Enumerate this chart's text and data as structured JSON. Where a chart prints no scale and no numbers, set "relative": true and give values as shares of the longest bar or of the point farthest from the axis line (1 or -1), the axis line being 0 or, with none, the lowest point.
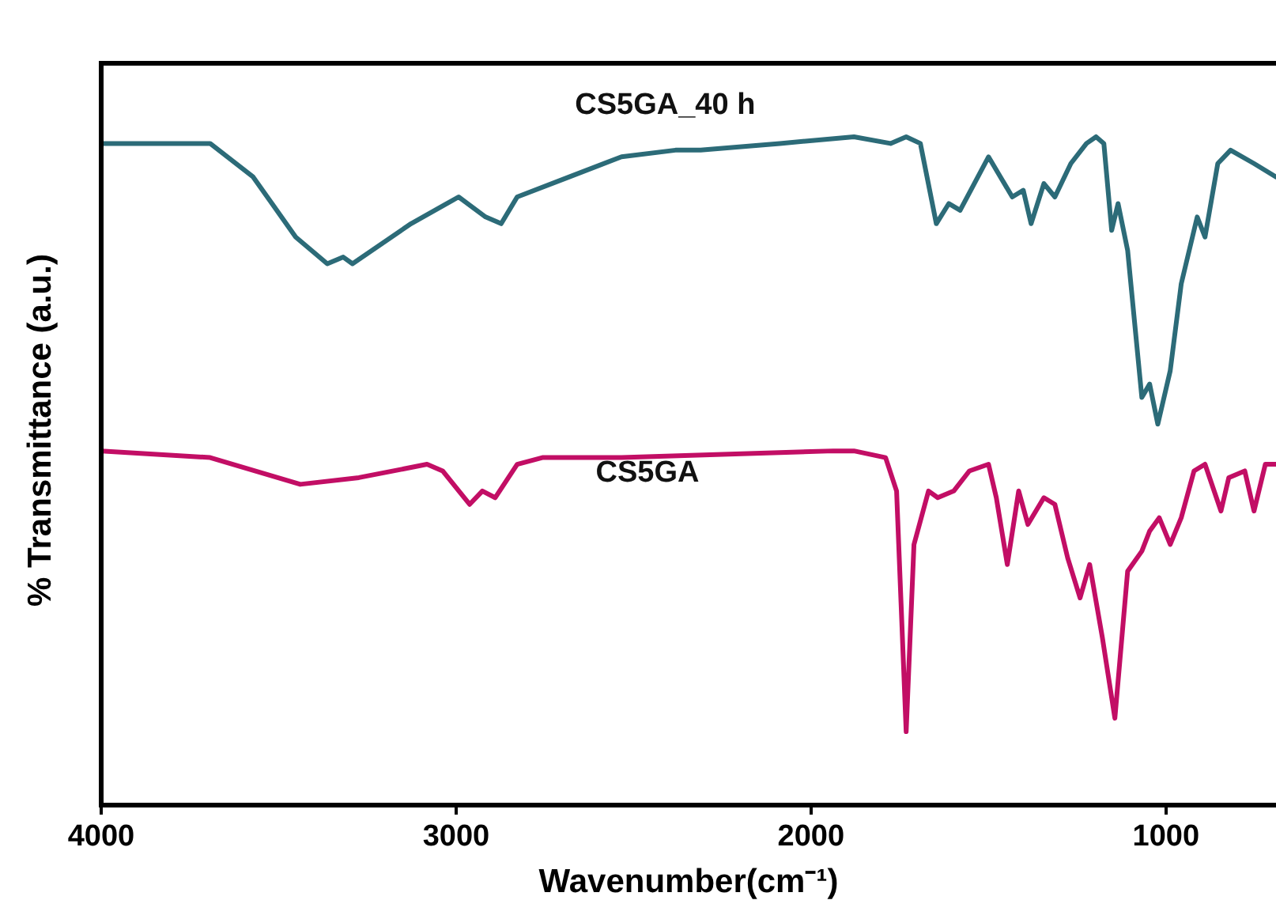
{
  "chart_data": {
    "type": "line",
    "relative": true,
    "xlabel": "Wavenumber(cm⁻¹)",
    "ylabel": "% Transmittance (a.u.)",
    "xlim": [
      4000,
      690
    ],
    "xticks": [
      4000,
      3000,
      2000,
      1000
    ],
    "grid": false,
    "legend": false,
    "marker": "none",
    "line_style": "solid",
    "series": [
      {
        "name": "CS5GA_40 h",
        "color": "#2c6b78",
        "x": [
          4000,
          3693,
          3572,
          3452,
          3363,
          3318,
          3292,
          3127,
          2993,
          2917,
          2873,
          2828,
          2681,
          2534,
          2382,
          2311,
          2088,
          1879,
          1776,
          1732,
          1692,
          1647,
          1612,
          1580,
          1500,
          1433,
          1402,
          1380,
          1344,
          1313,
          1268,
          1224,
          1197,
          1175,
          1153,
          1135,
          1108,
          1068,
          1046,
          1023,
          988,
          957,
          912,
          890,
          854,
          818,
          752,
          690
        ],
        "values": [
          0.99,
          0.99,
          0.94,
          0.85,
          0.81,
          0.82,
          0.81,
          0.87,
          0.91,
          0.88,
          0.87,
          0.91,
          0.94,
          0.97,
          0.98,
          0.98,
          0.99,
          1.0,
          0.99,
          1.0,
          0.99,
          0.87,
          0.9,
          0.89,
          0.97,
          0.91,
          0.92,
          0.87,
          0.93,
          0.91,
          0.96,
          0.99,
          1.0,
          0.99,
          0.86,
          0.9,
          0.83,
          0.61,
          0.63,
          0.57,
          0.65,
          0.78,
          0.88,
          0.85,
          0.96,
          0.98,
          0.96,
          0.94
        ]
      },
      {
        "name": "CS5GA",
        "color": "#c20e65",
        "x": [
          4000,
          3693,
          3439,
          3274,
          3082,
          3038,
          2962,
          2926,
          2890,
          2828,
          2757,
          2534,
          1937,
          1879,
          1790,
          1759,
          1732,
          1710,
          1669,
          1643,
          1598,
          1554,
          1500,
          1478,
          1447,
          1415,
          1389,
          1344,
          1313,
          1277,
          1242,
          1215,
          1179,
          1144,
          1108,
          1068,
          1046,
          1019,
          988,
          957,
          921,
          890,
          845,
          823,
          778,
          752,
          720,
          690
        ],
        "values": [
          0.53,
          0.52,
          0.48,
          0.49,
          0.51,
          0.5,
          0.45,
          0.47,
          0.46,
          0.51,
          0.52,
          0.52,
          0.53,
          0.53,
          0.52,
          0.47,
          0.11,
          0.39,
          0.47,
          0.46,
          0.47,
          0.5,
          0.51,
          0.46,
          0.36,
          0.47,
          0.42,
          0.46,
          0.45,
          0.37,
          0.31,
          0.36,
          0.25,
          0.13,
          0.35,
          0.38,
          0.41,
          0.43,
          0.39,
          0.43,
          0.5,
          0.51,
          0.44,
          0.49,
          0.5,
          0.44,
          0.51,
          0.51
        ]
      }
    ]
  }
}
